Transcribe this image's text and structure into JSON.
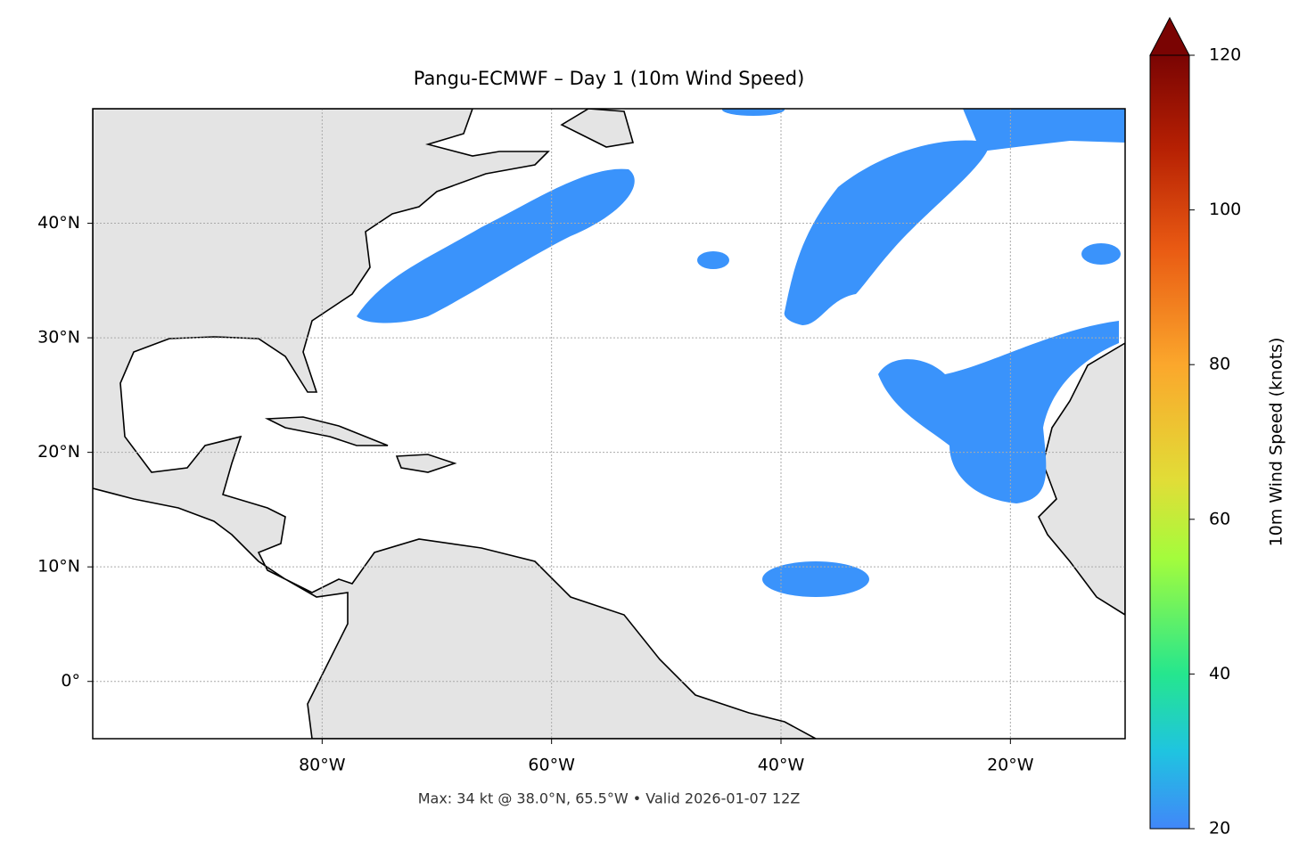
{
  "chart_data": {
    "type": "map",
    "title": "Pangu-ECMWF – Day 1 (10m Wind Speed)",
    "annotation": "Max: 34 kt @ 38.0°N, 65.5°W • Valid 2026-01-07 12Z",
    "xlim": [
      -100,
      -10
    ],
    "ylim": [
      -5,
      50
    ],
    "xticks": [
      {
        "value": -80,
        "label": "80°W"
      },
      {
        "value": -60,
        "label": "60°W"
      },
      {
        "value": -40,
        "label": "40°W"
      },
      {
        "value": -20,
        "label": "20°W"
      }
    ],
    "yticks": [
      {
        "value": 0,
        "label": "0°"
      },
      {
        "value": 10,
        "label": "10°N"
      },
      {
        "value": 20,
        "label": "20°N"
      },
      {
        "value": 30,
        "label": "30°N"
      },
      {
        "value": 40,
        "label": "40°N"
      }
    ],
    "grid": true,
    "colorbar": {
      "label": "10m Wind Speed (knots)",
      "lim": [
        20,
        120
      ],
      "ticks": [
        20,
        40,
        60,
        80,
        100,
        120
      ],
      "extend": "max"
    }
  }
}
